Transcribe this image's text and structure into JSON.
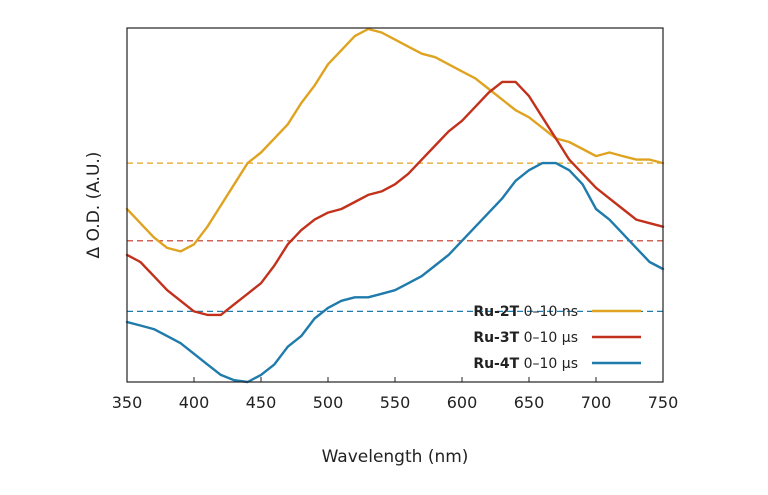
{
  "chart_data": {
    "type": "line",
    "title": "",
    "xlabel": "Wavelength (nm)",
    "ylabel": "Δ O.D. (A.U.)",
    "xlim": [
      350,
      750
    ],
    "ylim": [
      0,
      1
    ],
    "xticks": [
      350,
      400,
      450,
      500,
      550,
      600,
      650,
      700,
      750
    ],
    "yticks_shown": false,
    "grid": false,
    "legend_position": "bottom-right",
    "series": [
      {
        "name_bold": "Ru-2T",
        "name_rest": "0–10 ns",
        "color": "#e0a321",
        "x": [
          350,
          360,
          370,
          380,
          390,
          400,
          410,
          420,
          430,
          440,
          450,
          460,
          470,
          480,
          490,
          500,
          510,
          520,
          530,
          540,
          550,
          560,
          570,
          580,
          590,
          600,
          610,
          620,
          630,
          640,
          650,
          660,
          670,
          680,
          690,
          700,
          710,
          720,
          730,
          740,
          750
        ],
        "y": [
          0.49,
          0.45,
          0.41,
          0.38,
          0.37,
          0.39,
          0.44,
          0.5,
          0.56,
          0.62,
          0.65,
          0.69,
          0.73,
          0.79,
          0.84,
          0.9,
          0.94,
          0.98,
          1.0,
          0.99,
          0.97,
          0.95,
          0.93,
          0.92,
          0.9,
          0.88,
          0.86,
          0.83,
          0.8,
          0.77,
          0.75,
          0.72,
          0.69,
          0.68,
          0.66,
          0.64,
          0.65,
          0.64,
          0.63,
          0.63,
          0.62
        ],
        "baseline": 0.62
      },
      {
        "name_bold": "Ru-3T",
        "name_rest": "0–10 µs",
        "color": "#c2311b",
        "x": [
          350,
          360,
          370,
          380,
          390,
          400,
          410,
          420,
          430,
          440,
          450,
          460,
          470,
          480,
          490,
          500,
          510,
          520,
          530,
          540,
          550,
          560,
          570,
          580,
          590,
          600,
          610,
          620,
          630,
          640,
          650,
          660,
          670,
          680,
          690,
          700,
          710,
          720,
          730,
          740,
          750
        ],
        "y": [
          0.36,
          0.34,
          0.3,
          0.26,
          0.23,
          0.2,
          0.19,
          0.19,
          0.22,
          0.25,
          0.28,
          0.33,
          0.39,
          0.43,
          0.46,
          0.48,
          0.49,
          0.51,
          0.53,
          0.54,
          0.56,
          0.59,
          0.63,
          0.67,
          0.71,
          0.74,
          0.78,
          0.82,
          0.85,
          0.85,
          0.81,
          0.75,
          0.69,
          0.63,
          0.59,
          0.55,
          0.52,
          0.49,
          0.46,
          0.45,
          0.44
        ],
        "baseline": 0.4
      },
      {
        "name_bold": "Ru-4T",
        "name_rest": "0–10 µs",
        "color": "#1f7bab",
        "x": [
          350,
          360,
          370,
          380,
          390,
          400,
          410,
          420,
          430,
          440,
          450,
          460,
          470,
          480,
          490,
          500,
          510,
          520,
          530,
          540,
          550,
          560,
          570,
          580,
          590,
          600,
          610,
          620,
          630,
          640,
          650,
          660,
          670,
          680,
          690,
          700,
          710,
          720,
          730,
          740,
          750
        ],
        "y": [
          0.17,
          0.16,
          0.15,
          0.13,
          0.11,
          0.08,
          0.05,
          0.02,
          0.005,
          0.0,
          0.02,
          0.05,
          0.1,
          0.13,
          0.18,
          0.21,
          0.23,
          0.24,
          0.24,
          0.25,
          0.26,
          0.28,
          0.3,
          0.33,
          0.36,
          0.4,
          0.44,
          0.48,
          0.52,
          0.57,
          0.6,
          0.62,
          0.62,
          0.6,
          0.56,
          0.49,
          0.46,
          0.42,
          0.38,
          0.34,
          0.32
        ],
        "baseline": 0.2
      }
    ]
  }
}
